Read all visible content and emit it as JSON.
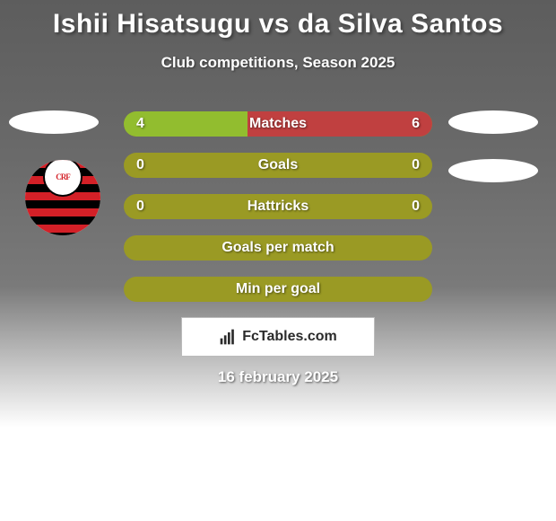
{
  "title": "Ishii Hisatsugu vs da Silva Santos",
  "subtitle": "Club competitions, Season 2025",
  "date": "16 february 2025",
  "attribution": "FcTables.com",
  "colors": {
    "bar_empty": "#9a9a24",
    "bar_left": "#92bd2f",
    "bar_right": "#c04040",
    "title_text": "#ffffff",
    "row_text": "#ffffff"
  },
  "fonts": {
    "title_size": 30,
    "subtitle_size": 17,
    "row_size": 16,
    "date_size": 17
  },
  "rows": [
    {
      "label": "Matches",
      "left": "4",
      "right": "6",
      "left_pct": 40,
      "right_pct": 60,
      "has_values": true
    },
    {
      "label": "Goals",
      "left": "0",
      "right": "0",
      "left_pct": 0,
      "right_pct": 0,
      "has_values": true
    },
    {
      "label": "Hattricks",
      "left": "0",
      "right": "0",
      "left_pct": 0,
      "right_pct": 0,
      "has_values": true
    },
    {
      "label": "Goals per match",
      "left": "",
      "right": "",
      "left_pct": 0,
      "right_pct": 0,
      "has_values": false
    },
    {
      "label": "Min per goal",
      "left": "",
      "right": "",
      "left_pct": 0,
      "right_pct": 0,
      "has_values": false
    }
  ],
  "logos": {
    "left_team_1": "placeholder",
    "left_team_2": "flamengo",
    "right_team_1": "placeholder",
    "right_team_2": "placeholder"
  }
}
